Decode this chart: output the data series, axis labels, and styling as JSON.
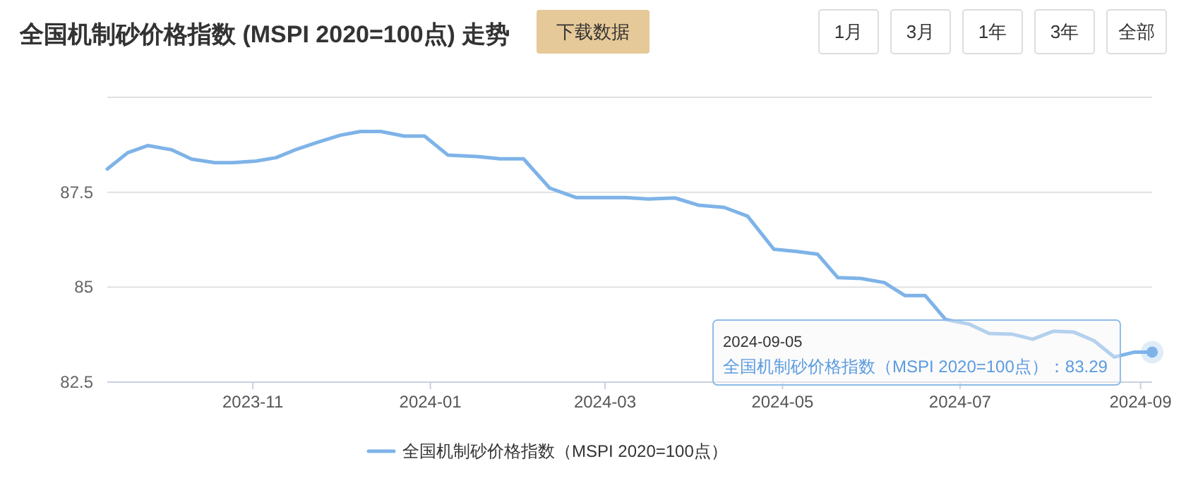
{
  "chart_data": {
    "type": "line",
    "title": "全国机制砂价格指数 (MSPI 2020=100点) 走势",
    "x": [
      "2023-09-12",
      "2023-09-19",
      "2023-09-26",
      "2023-10-04",
      "2023-10-11",
      "2023-10-19",
      "2023-10-25",
      "2023-11-02",
      "2023-11-09",
      "2023-11-16",
      "2023-11-23",
      "2023-12-01",
      "2023-12-08",
      "2023-12-15",
      "2023-12-23",
      "2023-12-30",
      "2024-01-07",
      "2024-01-17",
      "2024-01-25",
      "2024-02-02",
      "2024-02-11",
      "2024-02-20",
      "2024-02-29",
      "2024-03-08",
      "2024-03-16",
      "2024-03-25",
      "2024-04-02",
      "2024-04-11",
      "2024-04-19",
      "2024-04-28",
      "2024-05-06",
      "2024-05-13",
      "2024-05-20",
      "2024-05-28",
      "2024-06-05",
      "2024-06-12",
      "2024-06-19",
      "2024-06-26",
      "2024-07-04",
      "2024-07-11",
      "2024-07-19",
      "2024-07-26",
      "2024-08-02",
      "2024-08-09",
      "2024-08-16",
      "2024-08-23",
      "2024-08-30",
      "2024-09-05"
    ],
    "series": [
      {
        "name": "全国机制砂价格指数（MSPI 2020=100点）",
        "color": "#7eb3e8",
        "values": [
          88.11,
          88.54,
          88.73,
          88.62,
          88.37,
          88.28,
          88.28,
          88.32,
          88.41,
          88.63,
          88.81,
          89.0,
          89.1,
          89.1,
          88.98,
          88.98,
          88.48,
          88.44,
          88.38,
          88.38,
          87.61,
          87.36,
          87.36,
          87.36,
          87.32,
          87.35,
          87.16,
          87.1,
          86.87,
          86.0,
          85.94,
          85.87,
          85.25,
          85.23,
          85.12,
          84.78,
          84.78,
          84.15,
          84.03,
          83.78,
          83.76,
          83.63,
          83.84,
          83.82,
          83.59,
          83.16,
          83.29,
          83.29
        ]
      }
    ],
    "xlim": [
      "2023-09-12",
      "2024-09-05"
    ],
    "xticks": [
      {
        "value": "2023-11-01",
        "label": "2023-11"
      },
      {
        "value": "2024-01-01",
        "label": "2024-01"
      },
      {
        "value": "2024-03-01",
        "label": "2024-03"
      },
      {
        "value": "2024-05-01",
        "label": "2024-05"
      },
      {
        "value": "2024-07-01",
        "label": "2024-07"
      },
      {
        "value": "2024-09-01",
        "label": "2024-09"
      }
    ],
    "ylim": [
      82.5,
      90
    ],
    "yticks": [
      82.5,
      85,
      87.5,
      {
        "value": 90,
        "label": null
      }
    ],
    "grid": "y",
    "legend": "bottom",
    "marker": "none",
    "line_style": "solid",
    "annotations": [
      "下载数据",
      "1月",
      "3月",
      "1年",
      "3年",
      "全部",
      {
        "text": "2024-09-05\n全国机制砂价格指数（MSPI 2020=100点）：83.29",
        "x": "2024-09-05",
        "y": 83.29
      }
    ]
  }
}
